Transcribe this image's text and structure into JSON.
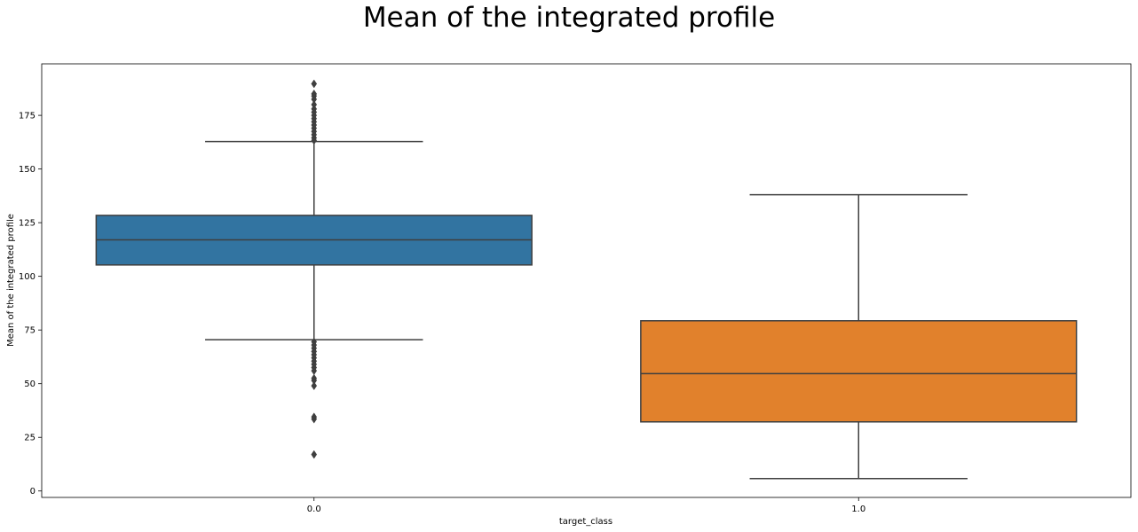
{
  "chart_data": {
    "type": "box",
    "title": "Mean of the integrated profile",
    "xlabel": "target_class",
    "ylabel": "Mean of the integrated profile",
    "categories": [
      "0.0",
      "1.0"
    ],
    "ylim": [
      -3,
      199
    ],
    "yticks": [
      0,
      25,
      50,
      75,
      100,
      125,
      150,
      175
    ],
    "grid": false,
    "boxes": [
      {
        "category": "0.0",
        "color": "#3274a1",
        "whisker_low": 70.5,
        "q1": 105.3,
        "median": 117.0,
        "q3": 128.4,
        "whisker_high": 162.8,
        "outliers": [
          189.7,
          185.0,
          184.0,
          182.5,
          180.0,
          178.0,
          176.5,
          175.0,
          173.5,
          172.0,
          170.5,
          169.0,
          167.5,
          166.0,
          164.5,
          163.3,
          69.5,
          68.0,
          66.5,
          65.0,
          63.5,
          62.0,
          60.5,
          59.0,
          57.5,
          56.0,
          52.5,
          51.5,
          49.0,
          34.5,
          33.5,
          17.0
        ]
      },
      {
        "category": "1.0",
        "color": "#e1812c",
        "whisker_low": 5.8,
        "q1": 32.2,
        "median": 54.7,
        "q3": 79.3,
        "whisker_high": 138.0,
        "outliers": []
      }
    ]
  }
}
